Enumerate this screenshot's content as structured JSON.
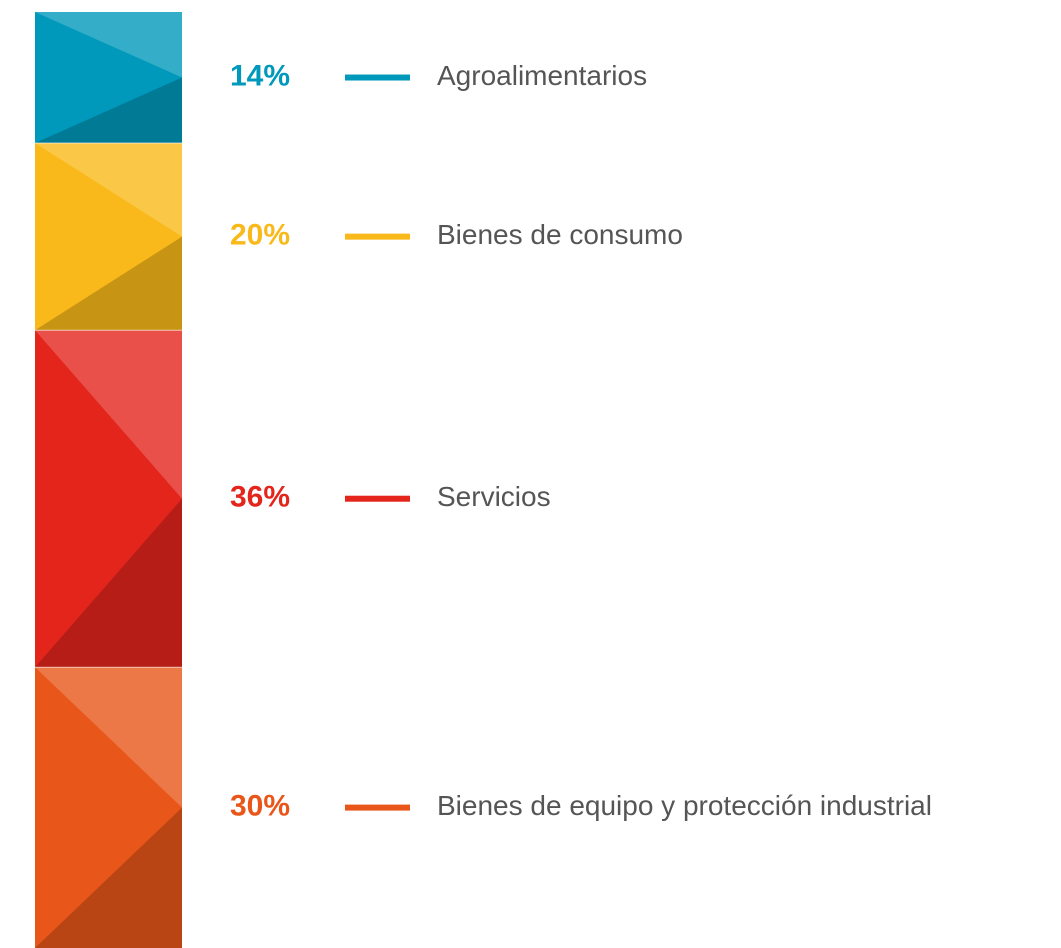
{
  "chart_data": {
    "type": "stacked-bar",
    "categories": [
      "Agroalimentarios",
      "Bienes de consumo",
      "Servicios",
      "Bienes de equipo y protección industrial"
    ],
    "values": [
      14,
      20,
      36,
      30
    ],
    "value_labels": [
      "14%",
      "20%",
      "36%",
      "30%"
    ],
    "colors": [
      "#0099bb",
      "#f9b91a",
      "#e3251c",
      "#e8561a"
    ]
  }
}
